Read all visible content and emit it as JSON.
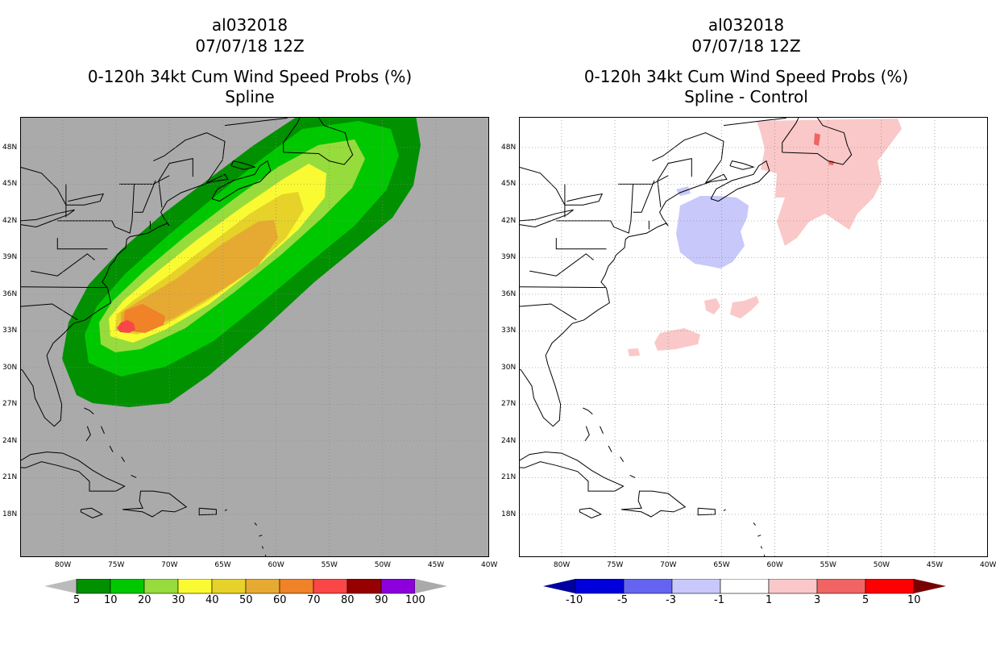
{
  "left_panel": {
    "storm_id": "al032018",
    "datetime": "07/07/18 12Z",
    "product": "0-120h 34kt Cum Wind Speed Probs (%)",
    "subtitle": "Spline",
    "colorbar": {
      "levels": [
        "5",
        "10",
        "20",
        "30",
        "40",
        "50",
        "60",
        "70",
        "80",
        "90",
        "100"
      ],
      "colors": [
        "#009000",
        "#00c800",
        "#96dc3c",
        "#fafa32",
        "#e6d228",
        "#e6aa32",
        "#f08228",
        "#fa4646",
        "#960000",
        "#8c00dc"
      ],
      "under_color": "#bbbbbb",
      "over_color": "#aaaaaa"
    }
  },
  "right_panel": {
    "storm_id": "al032018",
    "datetime": "07/07/18 12Z",
    "product": "0-120h 34kt Cum Wind Speed Probs (%)",
    "subtitle": "Spline - Control",
    "colorbar": {
      "levels": [
        "-10",
        "-5",
        "-3",
        "-1",
        "1",
        "3",
        "5",
        "10"
      ],
      "colors": [
        "#0000dc",
        "#6464f0",
        "#c8c8fa",
        "#ffffff",
        "#fac8c8",
        "#f06464",
        "#ff0000"
      ],
      "under_color": "#0000a0",
      "over_color": "#780000"
    }
  },
  "axes": {
    "lat_labels": [
      "48N",
      "45N",
      "42N",
      "39N",
      "36N",
      "33N",
      "30N",
      "27N",
      "24N",
      "21N",
      "18N"
    ],
    "lon_labels": [
      "80W",
      "75W",
      "70W",
      "65W",
      "60W",
      "55W",
      "50W",
      "45W",
      "40W"
    ],
    "lat_values": [
      48,
      45,
      42,
      39,
      36,
      33,
      30,
      27,
      24,
      21,
      18
    ],
    "lon_values": [
      -80,
      -75,
      -70,
      -65,
      -60,
      -55,
      -50,
      -45,
      -40
    ]
  }
}
